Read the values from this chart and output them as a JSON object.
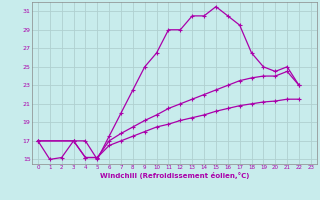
{
  "title": "",
  "xlabel": "Windchill (Refroidissement éolien,°C)",
  "ylabel": "",
  "bg_color": "#c8ecec",
  "grid_color": "#b0d0d0",
  "line_color": "#aa00aa",
  "xlim": [
    -0.5,
    23.5
  ],
  "ylim": [
    14.5,
    32.0
  ],
  "xticks": [
    0,
    1,
    2,
    3,
    4,
    5,
    6,
    7,
    8,
    9,
    10,
    11,
    12,
    13,
    14,
    15,
    16,
    17,
    18,
    19,
    20,
    21,
    22,
    23
  ],
  "yticks": [
    15,
    17,
    19,
    21,
    23,
    25,
    27,
    29,
    31
  ],
  "series1": [
    [
      0,
      17.0
    ],
    [
      1,
      15.0
    ],
    [
      2,
      15.2
    ],
    [
      3,
      17.0
    ],
    [
      4,
      17.0
    ],
    [
      5,
      15.0
    ],
    [
      6,
      17.5
    ],
    [
      7,
      20.0
    ],
    [
      8,
      22.5
    ],
    [
      9,
      25.0
    ],
    [
      10,
      26.5
    ],
    [
      11,
      29.0
    ],
    [
      12,
      29.0
    ],
    [
      13,
      30.5
    ],
    [
      14,
      30.5
    ],
    [
      15,
      31.5
    ],
    [
      16,
      30.5
    ],
    [
      17,
      29.5
    ],
    [
      18,
      26.5
    ],
    [
      19,
      25.0
    ],
    [
      20,
      24.5
    ],
    [
      21,
      25.0
    ],
    [
      22,
      23.0
    ]
  ],
  "series2": [
    [
      0,
      17.0
    ],
    [
      3,
      17.0
    ],
    [
      4,
      15.2
    ],
    [
      5,
      15.2
    ],
    [
      6,
      17.0
    ],
    [
      7,
      17.8
    ],
    [
      8,
      18.5
    ],
    [
      9,
      19.2
    ],
    [
      10,
      19.8
    ],
    [
      11,
      20.5
    ],
    [
      12,
      21.0
    ],
    [
      13,
      21.5
    ],
    [
      14,
      22.0
    ],
    [
      15,
      22.5
    ],
    [
      16,
      23.0
    ],
    [
      17,
      23.5
    ],
    [
      18,
      23.8
    ],
    [
      19,
      24.0
    ],
    [
      20,
      24.0
    ],
    [
      21,
      24.5
    ],
    [
      22,
      23.0
    ]
  ],
  "series3": [
    [
      0,
      17.0
    ],
    [
      3,
      17.0
    ],
    [
      4,
      15.2
    ],
    [
      5,
      15.2
    ],
    [
      6,
      16.5
    ],
    [
      7,
      17.0
    ],
    [
      8,
      17.5
    ],
    [
      9,
      18.0
    ],
    [
      10,
      18.5
    ],
    [
      11,
      18.8
    ],
    [
      12,
      19.2
    ],
    [
      13,
      19.5
    ],
    [
      14,
      19.8
    ],
    [
      15,
      20.2
    ],
    [
      16,
      20.5
    ],
    [
      17,
      20.8
    ],
    [
      18,
      21.0
    ],
    [
      19,
      21.2
    ],
    [
      20,
      21.3
    ],
    [
      21,
      21.5
    ],
    [
      22,
      21.5
    ]
  ]
}
